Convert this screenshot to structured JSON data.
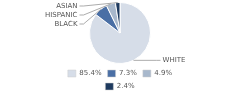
{
  "chart_data": {
    "type": "pie",
    "categories": [
      "WHITE",
      "BLACK",
      "HISPANIC",
      "ASIAN"
    ],
    "values": [
      85.4,
      7.3,
      4.9,
      2.4
    ],
    "value_labels": [
      "85.4%",
      "7.3%",
      "4.9%",
      "2.4%"
    ],
    "colors": [
      "#d6dde8",
      "#4a6fa5",
      "#a8b8cc",
      "#1e3a5f"
    ],
    "legend": "bottom"
  }
}
